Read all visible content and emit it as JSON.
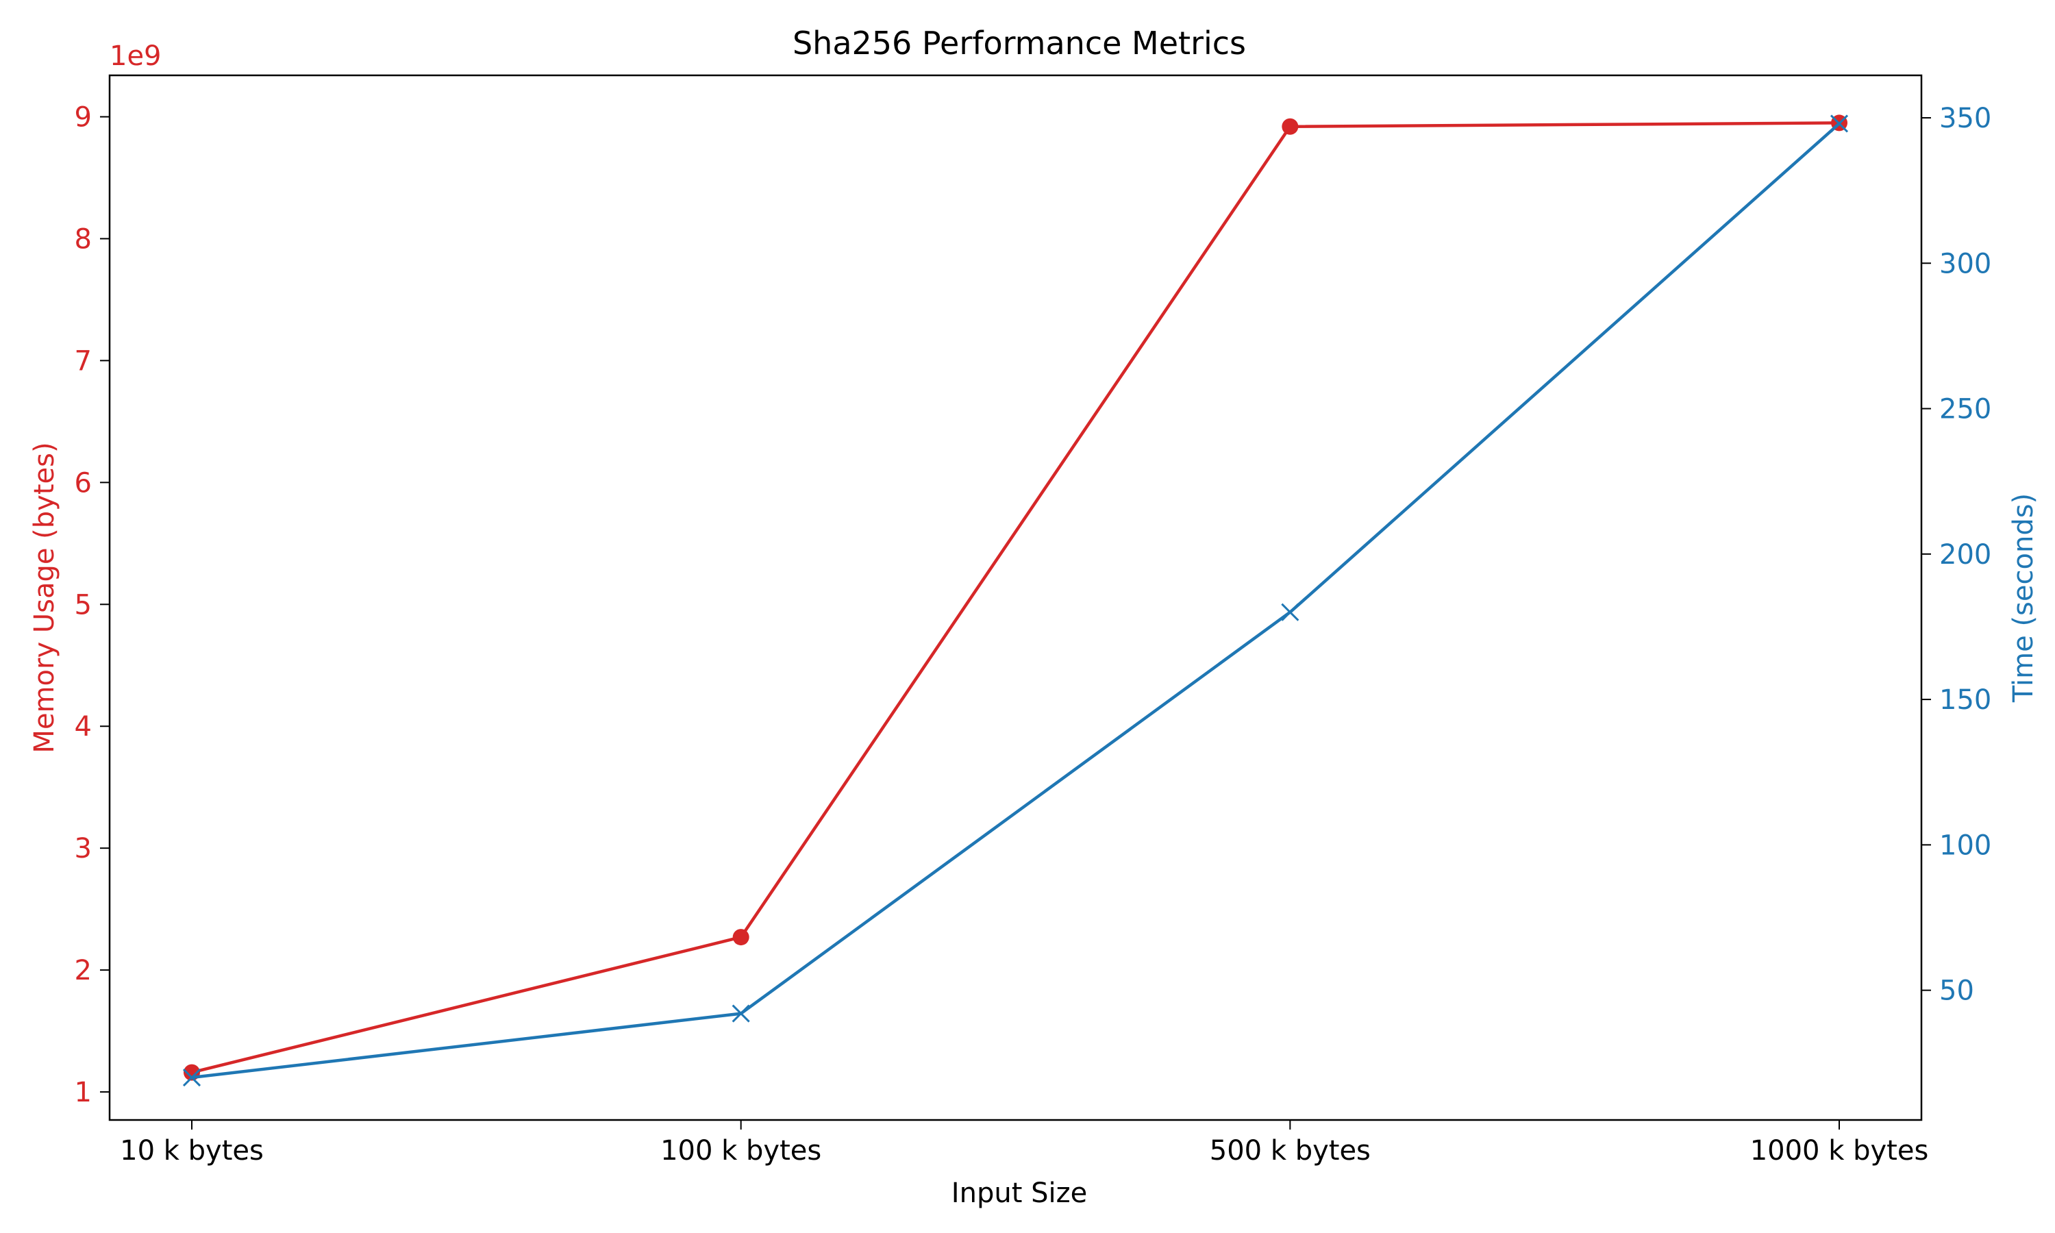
{
  "chart_data": {
    "type": "line",
    "title": "Sha256 Performance Metrics",
    "xlabel": "Input Size",
    "categories": [
      "10 k bytes",
      "100 k bytes",
      "500 k bytes",
      "1000 k bytes"
    ],
    "y_left": {
      "label": "Memory Usage (bytes)",
      "offset_label": "1e9",
      "scale": 1000000000,
      "range": [
        0.77,
        9.34
      ],
      "ticks": [
        1,
        2,
        3,
        4,
        5,
        6,
        7,
        8,
        9
      ],
      "color": "#d62728"
    },
    "y_right": {
      "label": "Time (seconds)",
      "range": [
        5.4,
        364.6
      ],
      "ticks": [
        50,
        100,
        150,
        200,
        250,
        300,
        350
      ],
      "color": "#1f77b4"
    },
    "series": [
      {
        "axis": "left",
        "color": "#d62728",
        "marker": "circle",
        "values": [
          1160000000,
          2270000000,
          8920000000,
          8950000000
        ]
      },
      {
        "axis": "right",
        "color": "#1f77b4",
        "marker": "x",
        "values": [
          20,
          42,
          180,
          348
        ]
      }
    ],
    "grid": false,
    "legend": "none"
  }
}
